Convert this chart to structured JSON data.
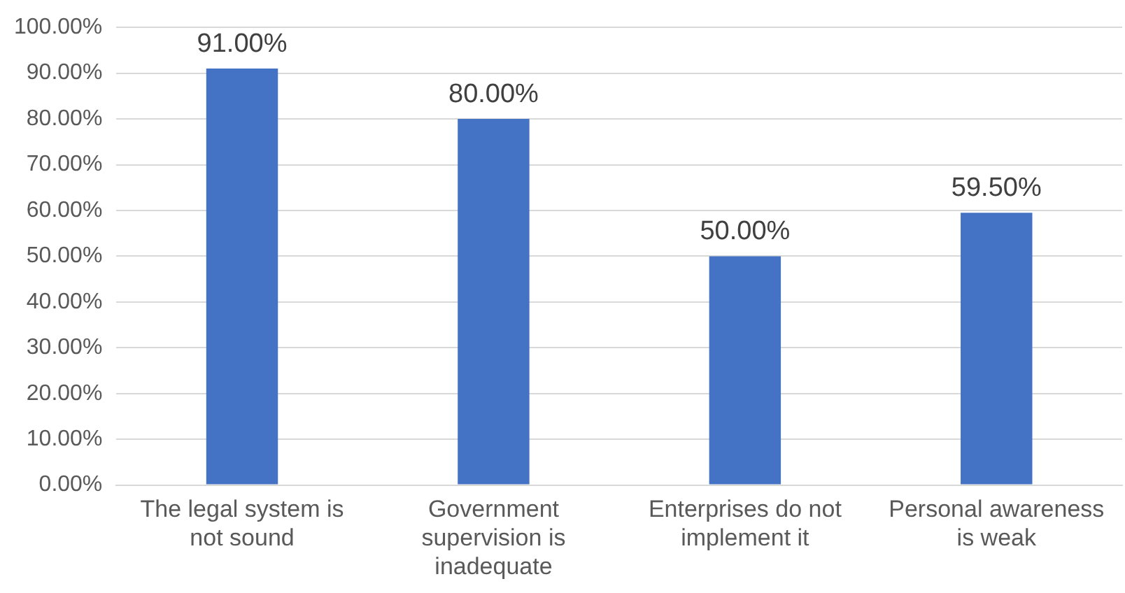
{
  "chart_data": {
    "type": "bar",
    "categories": [
      "The legal system is not sound",
      "Government supervision is inadequate",
      "Enterprises do not implement it",
      "Personal awareness is weak"
    ],
    "values": [
      91,
      80,
      50,
      59.5
    ],
    "value_labels": [
      "91.00%",
      "80.00%",
      "50.00%",
      "59.50%"
    ],
    "color": "#4472c4",
    "ylim": [
      0,
      100
    ],
    "yticks": [
      {
        "value": 0,
        "label": "0.00%"
      },
      {
        "value": 10,
        "label": "10.00%"
      },
      {
        "value": 20,
        "label": "20.00%"
      },
      {
        "value": 30,
        "label": "30.00%"
      },
      {
        "value": 40,
        "label": "40.00%"
      },
      {
        "value": 50,
        "label": "50.00%"
      },
      {
        "value": 60,
        "label": "60.00%"
      },
      {
        "value": 70,
        "label": "70.00%"
      },
      {
        "value": 80,
        "label": "80.00%"
      },
      {
        "value": 90,
        "label": "90.00%"
      },
      {
        "value": 100,
        "label": "100.00%"
      }
    ],
    "grid": "y",
    "legend": false
  }
}
